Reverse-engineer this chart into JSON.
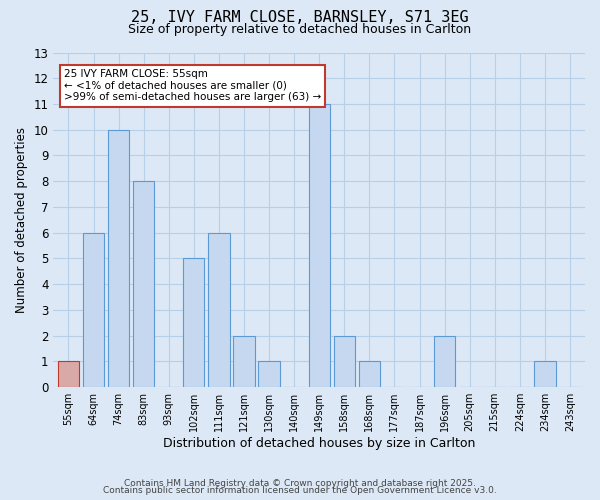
{
  "title": "25, IVY FARM CLOSE, BARNSLEY, S71 3EG",
  "subtitle": "Size of property relative to detached houses in Carlton",
  "xlabel": "Distribution of detached houses by size in Carlton",
  "ylabel": "Number of detached properties",
  "categories": [
    "55sqm",
    "64sqm",
    "74sqm",
    "83sqm",
    "93sqm",
    "102sqm",
    "111sqm",
    "121sqm",
    "130sqm",
    "140sqm",
    "149sqm",
    "158sqm",
    "168sqm",
    "177sqm",
    "187sqm",
    "196sqm",
    "205sqm",
    "215sqm",
    "224sqm",
    "234sqm",
    "243sqm"
  ],
  "values": [
    1,
    6,
    10,
    8,
    0,
    5,
    6,
    2,
    1,
    0,
    11,
    2,
    1,
    0,
    0,
    2,
    0,
    0,
    0,
    1,
    0
  ],
  "highlight_index": 0,
  "highlight_color": "#d9a9a8",
  "bar_color": "#c5d8ef",
  "bar_edge_color": "#5b9bd5",
  "highlight_edge_color": "#c0392b",
  "ylim": [
    0,
    13
  ],
  "yticks": [
    0,
    1,
    2,
    3,
    4,
    5,
    6,
    7,
    8,
    9,
    10,
    11,
    12,
    13
  ],
  "annotation_text": "25 IVY FARM CLOSE: 55sqm\n← <1% of detached houses are smaller (0)\n>99% of semi-detached houses are larger (63) →",
  "annotation_box_edge": "#c0392b",
  "footer1": "Contains HM Land Registry data © Crown copyright and database right 2025.",
  "footer2": "Contains public sector information licensed under the Open Government Licence v3.0.",
  "background_color": "#dce8f5",
  "grid_color": "#b8cfe8",
  "title_fontsize": 11,
  "subtitle_fontsize": 9
}
